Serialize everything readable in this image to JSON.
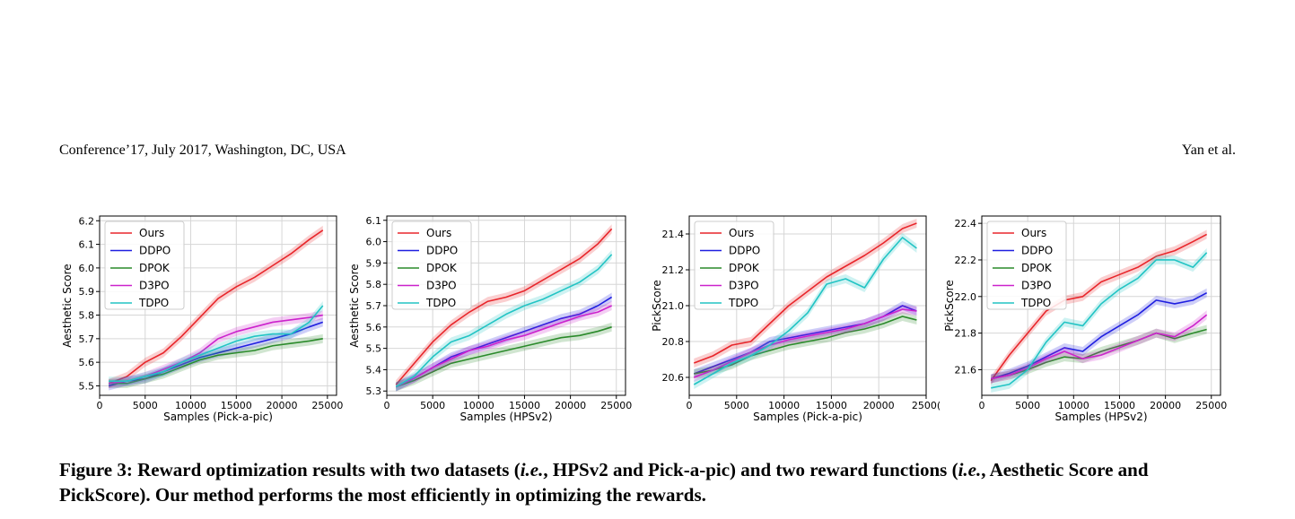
{
  "header": {
    "left": "Conference’17, July 2017, Washington, DC, USA",
    "right": "Yan et al."
  },
  "caption": {
    "figure_label": "Figure 3:",
    "p1": " Reward optimization results with two datasets (",
    "ie1": "i.e.",
    "p2": ", HPSv2 and Pick-a-pic) and two reward functions (",
    "ie2": "i.e.",
    "p3": ", Aesthetic Score and PickScore). Our method performs the most efficiently in optimizing the rewards."
  },
  "colors": {
    "Ours": "#e8262b",
    "DDPO": "#1f1fe0",
    "DPOK": "#2a8a2a",
    "D3PO": "#cc22cc",
    "TDPO": "#22c4c4"
  },
  "chart_data": [
    {
      "type": "line",
      "xlabel": "Samples (Pick-a-pic)",
      "ylabel": "Aesthetic Score",
      "xlim": [
        0,
        26000
      ],
      "ylim": [
        5.46,
        6.22
      ],
      "xticks": [
        "0",
        "5000",
        "10000",
        "15000",
        "20000",
        "25000"
      ],
      "yticks": [
        "5.5",
        "5.6",
        "5.7",
        "5.8",
        "5.9",
        "6.0",
        "6.1",
        "6.2"
      ],
      "grid": true,
      "legend_position": "top-left",
      "series": [
        {
          "name": "Ours",
          "x": [
            1000,
            3000,
            5000,
            7000,
            9000,
            11000,
            13000,
            15000,
            17000,
            19000,
            21000,
            23000,
            24500
          ],
          "values": [
            5.51,
            5.54,
            5.6,
            5.64,
            5.71,
            5.79,
            5.87,
            5.92,
            5.96,
            6.01,
            6.06,
            6.12,
            6.16
          ]
        },
        {
          "name": "DDPO",
          "x": [
            1000,
            3000,
            5000,
            7000,
            9000,
            11000,
            13000,
            15000,
            17000,
            19000,
            21000,
            23000,
            24500
          ],
          "values": [
            5.5,
            5.52,
            5.53,
            5.56,
            5.59,
            5.62,
            5.64,
            5.66,
            5.68,
            5.7,
            5.72,
            5.75,
            5.77
          ]
        },
        {
          "name": "DPOK",
          "x": [
            1000,
            3000,
            5000,
            7000,
            9000,
            11000,
            13000,
            15000,
            17000,
            19000,
            21000,
            23000,
            24500
          ],
          "values": [
            5.51,
            5.51,
            5.53,
            5.55,
            5.58,
            5.61,
            5.63,
            5.64,
            5.65,
            5.67,
            5.68,
            5.69,
            5.7
          ]
        },
        {
          "name": "D3PO",
          "x": [
            1000,
            3000,
            5000,
            7000,
            9000,
            11000,
            13000,
            15000,
            17000,
            19000,
            21000,
            23000,
            24500
          ],
          "values": [
            5.51,
            5.52,
            5.54,
            5.57,
            5.6,
            5.64,
            5.7,
            5.73,
            5.75,
            5.77,
            5.78,
            5.79,
            5.8
          ]
        },
        {
          "name": "TDPO",
          "x": [
            1000,
            3000,
            5000,
            7000,
            9000,
            11000,
            13000,
            15000,
            17000,
            19000,
            21000,
            23000,
            24500
          ],
          "values": [
            5.52,
            5.52,
            5.54,
            5.56,
            5.6,
            5.63,
            5.66,
            5.69,
            5.71,
            5.72,
            5.72,
            5.77,
            5.84
          ]
        }
      ]
    },
    {
      "type": "line",
      "xlabel": "Samples (HPSv2)",
      "ylabel": "Aesthetic Score",
      "xlim": [
        0,
        26000
      ],
      "ylim": [
        5.28,
        6.12
      ],
      "xticks": [
        "0",
        "5000",
        "10000",
        "15000",
        "20000",
        "25000"
      ],
      "yticks": [
        "5.3",
        "5.4",
        "5.5",
        "5.6",
        "5.7",
        "5.8",
        "5.9",
        "6.0",
        "6.1"
      ],
      "grid": true,
      "legend_position": "top-left",
      "series": [
        {
          "name": "Ours",
          "x": [
            1000,
            3000,
            5000,
            7000,
            9000,
            11000,
            13000,
            15000,
            17000,
            19000,
            21000,
            23000,
            24500
          ],
          "values": [
            5.33,
            5.43,
            5.53,
            5.61,
            5.67,
            5.72,
            5.74,
            5.77,
            5.82,
            5.87,
            5.92,
            5.99,
            6.06
          ]
        },
        {
          "name": "DDPO",
          "x": [
            1000,
            3000,
            5000,
            7000,
            9000,
            11000,
            13000,
            15000,
            17000,
            19000,
            21000,
            23000,
            24500
          ],
          "values": [
            5.32,
            5.36,
            5.41,
            5.46,
            5.49,
            5.52,
            5.55,
            5.58,
            5.61,
            5.64,
            5.66,
            5.7,
            5.74
          ]
        },
        {
          "name": "DPOK",
          "x": [
            1000,
            3000,
            5000,
            7000,
            9000,
            11000,
            13000,
            15000,
            17000,
            19000,
            21000,
            23000,
            24500
          ],
          "values": [
            5.32,
            5.35,
            5.39,
            5.43,
            5.45,
            5.47,
            5.49,
            5.51,
            5.53,
            5.55,
            5.56,
            5.58,
            5.6
          ]
        },
        {
          "name": "D3PO",
          "x": [
            1000,
            3000,
            5000,
            7000,
            9000,
            11000,
            13000,
            15000,
            17000,
            19000,
            21000,
            23000,
            24500
          ],
          "values": [
            5.32,
            5.36,
            5.41,
            5.45,
            5.49,
            5.51,
            5.54,
            5.56,
            5.59,
            5.62,
            5.65,
            5.67,
            5.7
          ]
        },
        {
          "name": "TDPO",
          "x": [
            1000,
            3000,
            5000,
            7000,
            9000,
            11000,
            13000,
            15000,
            17000,
            19000,
            21000,
            23000,
            24500
          ],
          "values": [
            5.32,
            5.37,
            5.46,
            5.53,
            5.56,
            5.61,
            5.66,
            5.7,
            5.73,
            5.77,
            5.81,
            5.87,
            5.94
          ]
        }
      ]
    },
    {
      "type": "line",
      "xlabel": "Samples (Pick-a-pic)",
      "ylabel": "PickScore",
      "xlim": [
        0,
        25000
      ],
      "ylim": [
        20.5,
        21.5
      ],
      "xticks": [
        "0",
        "5000",
        "10000",
        "15000",
        "20000",
        "2500("
      ],
      "yticks": [
        "20.6",
        "20.8",
        "21.0",
        "21.2",
        "21.4"
      ],
      "grid": true,
      "legend_position": "top-left",
      "series": [
        {
          "name": "Ours",
          "x": [
            500,
            2500,
            4500,
            6500,
            8500,
            10500,
            12500,
            14500,
            16500,
            18500,
            20500,
            22500,
            24000
          ],
          "values": [
            20.68,
            20.72,
            20.78,
            20.8,
            20.9,
            21.0,
            21.08,
            21.16,
            21.22,
            21.28,
            21.35,
            21.43,
            21.46
          ]
        },
        {
          "name": "DDPO",
          "x": [
            500,
            2500,
            4500,
            6500,
            8500,
            10500,
            12500,
            14500,
            16500,
            18500,
            20500,
            22500,
            24000
          ],
          "values": [
            20.62,
            20.66,
            20.7,
            20.74,
            20.8,
            20.82,
            20.84,
            20.86,
            20.88,
            20.9,
            20.94,
            21.0,
            20.97
          ]
        },
        {
          "name": "DPOK",
          "x": [
            500,
            2500,
            4500,
            6500,
            8500,
            10500,
            12500,
            14500,
            16500,
            18500,
            20500,
            22500,
            24000
          ],
          "values": [
            20.62,
            20.64,
            20.67,
            20.72,
            20.75,
            20.78,
            20.8,
            20.82,
            20.85,
            20.87,
            20.9,
            20.94,
            20.92
          ]
        },
        {
          "name": "D3PO",
          "x": [
            500,
            2500,
            4500,
            6500,
            8500,
            10500,
            12500,
            14500,
            16500,
            18500,
            20500,
            22500,
            24000
          ],
          "values": [
            20.6,
            20.64,
            20.69,
            20.74,
            20.78,
            20.81,
            20.83,
            20.85,
            20.87,
            20.9,
            20.94,
            20.98,
            20.97
          ]
        },
        {
          "name": "TDPO",
          "x": [
            500,
            2500,
            4500,
            6500,
            8500,
            10500,
            12500,
            14500,
            16500,
            18500,
            20500,
            22500,
            24000
          ],
          "values": [
            20.56,
            20.62,
            20.68,
            20.72,
            20.78,
            20.86,
            20.96,
            21.12,
            21.15,
            21.1,
            21.26,
            21.38,
            21.32
          ]
        }
      ]
    },
    {
      "type": "line",
      "xlabel": "Samples (HPSv2)",
      "ylabel": "PickScore",
      "xlim": [
        0,
        26000
      ],
      "ylim": [
        21.46,
        22.44
      ],
      "xticks": [
        "0",
        "5000",
        "10000",
        "15000",
        "20000",
        "25000"
      ],
      "yticks": [
        "21.6",
        "21.8",
        "22.0",
        "22.2",
        "22.4"
      ],
      "grid": true,
      "legend_position": "top-left",
      "series": [
        {
          "name": "Ours",
          "x": [
            1000,
            3000,
            5000,
            7000,
            9000,
            11000,
            13000,
            15000,
            17000,
            19000,
            21000,
            23000,
            24500
          ],
          "values": [
            21.54,
            21.68,
            21.8,
            21.92,
            21.98,
            22.0,
            22.08,
            22.12,
            22.16,
            22.22,
            22.25,
            22.3,
            22.34
          ]
        },
        {
          "name": "DDPO",
          "x": [
            1000,
            3000,
            5000,
            7000,
            9000,
            11000,
            13000,
            15000,
            17000,
            19000,
            21000,
            23000,
            24500
          ],
          "values": [
            21.55,
            21.58,
            21.62,
            21.67,
            21.72,
            21.7,
            21.78,
            21.84,
            21.9,
            21.98,
            21.96,
            21.98,
            22.02
          ]
        },
        {
          "name": "DPOK",
          "x": [
            1000,
            3000,
            5000,
            7000,
            9000,
            11000,
            13000,
            15000,
            17000,
            19000,
            21000,
            23000,
            24500
          ],
          "values": [
            21.55,
            21.57,
            21.6,
            21.64,
            21.67,
            21.66,
            21.7,
            21.73,
            21.76,
            21.8,
            21.77,
            21.8,
            21.82
          ]
        },
        {
          "name": "D3PO",
          "x": [
            1000,
            3000,
            5000,
            7000,
            9000,
            11000,
            13000,
            15000,
            17000,
            19000,
            21000,
            23000,
            24500
          ],
          "values": [
            21.55,
            21.57,
            21.61,
            21.66,
            21.7,
            21.66,
            21.68,
            21.72,
            21.76,
            21.8,
            21.78,
            21.84,
            21.9
          ]
        },
        {
          "name": "TDPO",
          "x": [
            1000,
            3000,
            5000,
            7000,
            9000,
            11000,
            13000,
            15000,
            17000,
            19000,
            21000,
            23000,
            24500
          ],
          "values": [
            21.5,
            21.52,
            21.6,
            21.75,
            21.86,
            21.84,
            21.96,
            22.04,
            22.1,
            22.2,
            22.2,
            22.16,
            22.24
          ]
        }
      ]
    }
  ]
}
